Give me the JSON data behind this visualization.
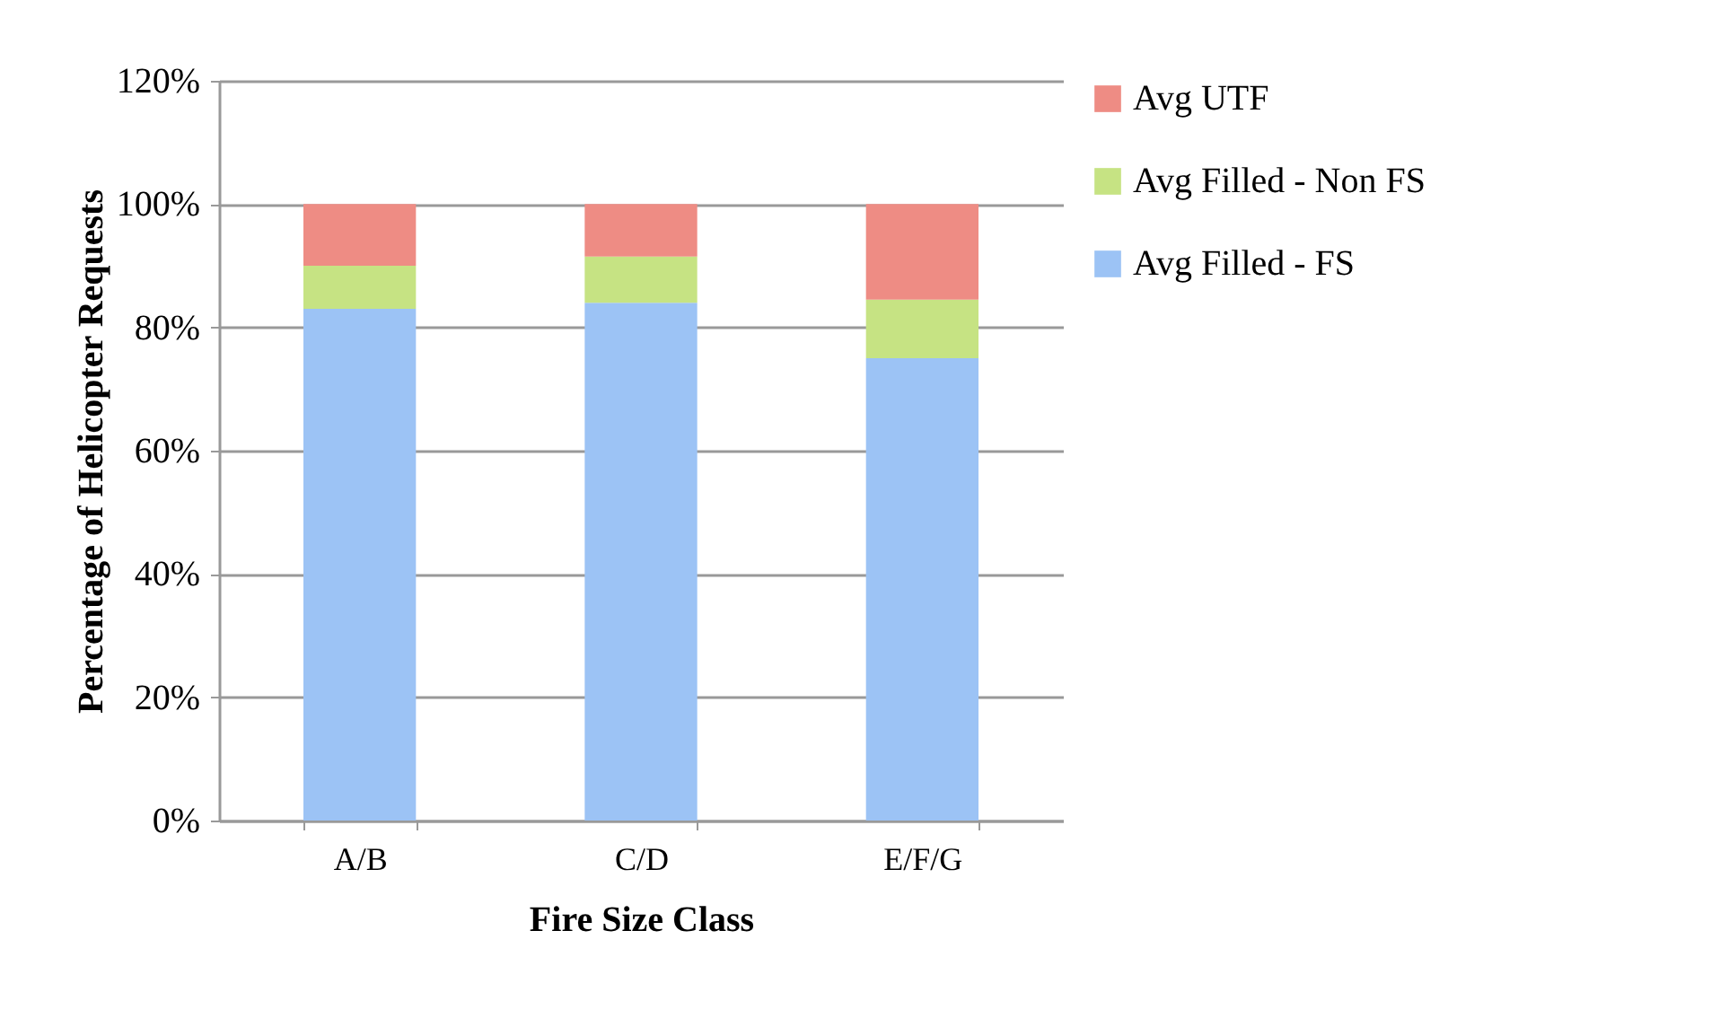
{
  "chart_data": {
    "type": "bar",
    "stacked": true,
    "xlabel": "Fire  Size Class",
    "ylabel": "Percentage of Helicopter Requests",
    "categories": [
      "A/B",
      "C/D",
      "E/F/G"
    ],
    "series": [
      {
        "name": "Avg Filled - FS",
        "color": "#9cc3f5",
        "values": [
          83,
          84,
          75
        ]
      },
      {
        "name": "Avg Filled - Non FS",
        "color": "#c6e383",
        "values": [
          7,
          7.5,
          9.5
        ]
      },
      {
        "name": "Avg UTF",
        "color": "#ee8c84",
        "values": [
          10,
          8.5,
          15.5
        ]
      }
    ],
    "ylim": [
      0,
      120
    ],
    "yticks": [
      {
        "value": 0,
        "label": "0%"
      },
      {
        "value": 20,
        "label": "20%"
      },
      {
        "value": 40,
        "label": "40%"
      },
      {
        "value": 60,
        "label": "60%"
      },
      {
        "value": 80,
        "label": "80%"
      },
      {
        "value": 100,
        "label": "100%"
      },
      {
        "value": 120,
        "label": "120%"
      }
    ],
    "grid": "y",
    "legend": "right"
  }
}
